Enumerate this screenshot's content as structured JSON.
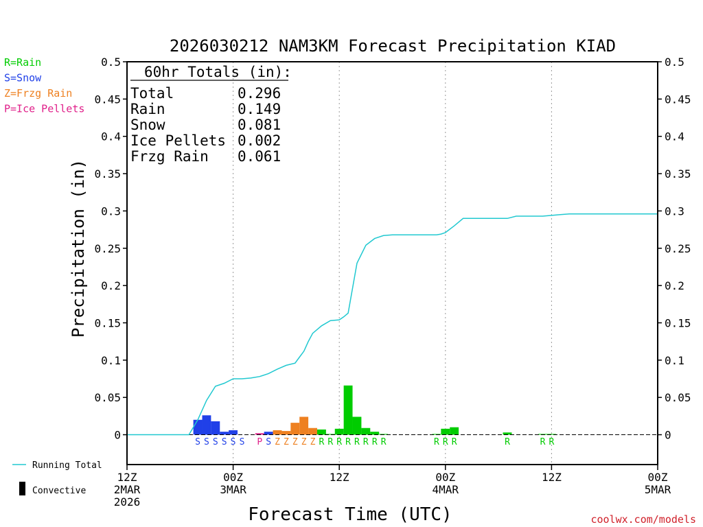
{
  "chart_data": {
    "type": "bar",
    "title": "2026030212 NAM3KM Forecast Precipitation KIAD",
    "xlabel": "Forecast Time (UTC)",
    "ylabel": "Precipitation (in)",
    "ylim": [
      -0.04,
      0.5
    ],
    "xlim_hours": [
      0,
      60
    ],
    "yticks": [
      "0",
      "0.05",
      "0.1",
      "0.15",
      "0.2",
      "0.25",
      "0.3",
      "0.35",
      "0.4",
      "0.45",
      "0.5"
    ],
    "yticks_right": [
      "0",
      "0.05",
      "0.1",
      "0.15",
      "0.2",
      "0.25",
      "0.3",
      "0.35",
      "0.4",
      "0.45",
      "0.5"
    ],
    "xticks": [
      {
        "hour": 0,
        "lines": [
          "12Z",
          "2MAR",
          "2026"
        ]
      },
      {
        "hour": 12,
        "lines": [
          "00Z",
          "3MAR"
        ]
      },
      {
        "hour": 24,
        "lines": [
          "12Z"
        ]
      },
      {
        "hour": 36,
        "lines": [
          "00Z",
          "4MAR"
        ]
      },
      {
        "hour": 48,
        "lines": [
          "12Z"
        ]
      },
      {
        "hour": 60,
        "lines": [
          "00Z",
          "5MAR"
        ]
      }
    ],
    "type_legend": [
      {
        "code": "R",
        "label": "R=Rain",
        "color": "#00cc00"
      },
      {
        "code": "S",
        "label": "S=Snow",
        "color": "#2040e8"
      },
      {
        "code": "Z",
        "label": "Z=Frzg Rain",
        "color": "#ee8020"
      },
      {
        "code": "P",
        "label": "P=Ice Pellets",
        "color": "#e0208a"
      }
    ],
    "totals": {
      "header": "60hr Totals (in):",
      "rows": [
        {
          "label": "Total",
          "value": "0.296"
        },
        {
          "label": "Rain",
          "value": "0.149"
        },
        {
          "label": "Snow",
          "value": "0.081"
        },
        {
          "label": "Ice Pellets",
          "value": "0.002"
        },
        {
          "label": "Frzg Rain",
          "value": "0.061"
        }
      ]
    },
    "bars": [
      {
        "hour": 8,
        "value": 0.02,
        "type": "S"
      },
      {
        "hour": 9,
        "value": 0.026,
        "type": "S"
      },
      {
        "hour": 10,
        "value": 0.018,
        "type": "S"
      },
      {
        "hour": 11,
        "value": 0.004,
        "type": "S"
      },
      {
        "hour": 12,
        "value": 0.006,
        "type": "S"
      },
      {
        "hour": 13,
        "value": 0.0,
        "type": "S"
      },
      {
        "hour": 15,
        "value": 0.002,
        "type": "P"
      },
      {
        "hour": 16,
        "value": 0.004,
        "type": "S"
      },
      {
        "hour": 17,
        "value": 0.006,
        "type": "Z"
      },
      {
        "hour": 18,
        "value": 0.005,
        "type": "Z"
      },
      {
        "hour": 19,
        "value": 0.016,
        "type": "Z"
      },
      {
        "hour": 20,
        "value": 0.024,
        "type": "Z"
      },
      {
        "hour": 21,
        "value": 0.009,
        "type": "Z"
      },
      {
        "hour": 22,
        "value": 0.007,
        "type": "R"
      },
      {
        "hour": 23,
        "value": 0.001,
        "type": "R"
      },
      {
        "hour": 24,
        "value": 0.008,
        "type": "R"
      },
      {
        "hour": 25,
        "value": 0.066,
        "type": "R"
      },
      {
        "hour": 26,
        "value": 0.024,
        "type": "R"
      },
      {
        "hour": 27,
        "value": 0.009,
        "type": "R"
      },
      {
        "hour": 28,
        "value": 0.004,
        "type": "R"
      },
      {
        "hour": 29,
        "value": 0.001,
        "type": "R"
      },
      {
        "hour": 35,
        "value": 0.001,
        "type": "R"
      },
      {
        "hour": 36,
        "value": 0.008,
        "type": "R"
      },
      {
        "hour": 37,
        "value": 0.01,
        "type": "R"
      },
      {
        "hour": 43,
        "value": 0.003,
        "type": "R"
      },
      {
        "hour": 47,
        "value": 0.001,
        "type": "R"
      },
      {
        "hour": 48,
        "value": 0.001,
        "type": "R"
      }
    ],
    "running_total": {
      "label": "Running Total",
      "color": "#20c8d0",
      "points": [
        [
          0,
          0
        ],
        [
          7,
          0
        ],
        [
          8,
          0.02
        ],
        [
          9,
          0.046
        ],
        [
          10,
          0.065
        ],
        [
          11,
          0.069
        ],
        [
          12,
          0.075
        ],
        [
          13,
          0.075
        ],
        [
          14,
          0.076
        ],
        [
          15,
          0.078
        ],
        [
          16,
          0.082
        ],
        [
          17,
          0.088
        ],
        [
          18,
          0.093
        ],
        [
          19,
          0.096
        ],
        [
          19.5,
          0.104
        ],
        [
          20,
          0.112
        ],
        [
          20.5,
          0.125
        ],
        [
          21,
          0.136
        ],
        [
          21.5,
          0.141
        ],
        [
          22,
          0.146
        ],
        [
          23,
          0.153
        ],
        [
          24,
          0.154
        ],
        [
          24.5,
          0.158
        ],
        [
          25,
          0.163
        ],
        [
          26,
          0.23
        ],
        [
          27,
          0.254
        ],
        [
          28,
          0.263
        ],
        [
          29,
          0.267
        ],
        [
          30,
          0.268
        ],
        [
          35,
          0.268
        ],
        [
          35.5,
          0.269
        ],
        [
          36,
          0.271
        ],
        [
          37,
          0.28
        ],
        [
          38,
          0.29
        ],
        [
          39,
          0.29
        ],
        [
          43,
          0.29
        ],
        [
          44,
          0.293
        ],
        [
          47,
          0.293
        ],
        [
          48,
          0.294
        ],
        [
          49,
          0.295
        ],
        [
          50,
          0.296
        ],
        [
          60,
          0.296
        ]
      ]
    },
    "convective_label": "Convective",
    "convective_color": "#000000",
    "credit": "coolwx.com/models",
    "credit_color": "#d0202a"
  }
}
